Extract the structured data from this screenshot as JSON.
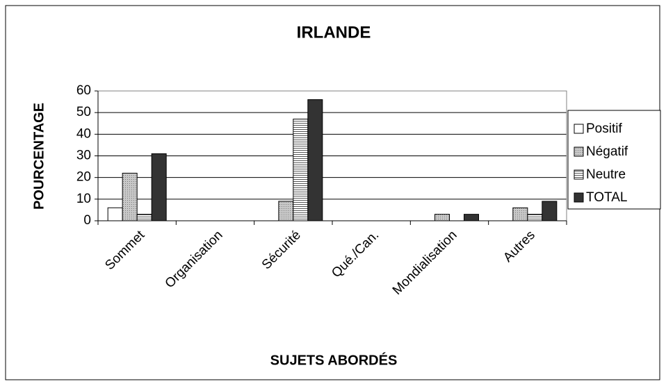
{
  "chart_data": {
    "type": "bar",
    "title": "IRLANDE",
    "x_label": "SUJETS ABORDÉS",
    "y_label": "POURCENTAGE",
    "categories": [
      "Sommet",
      "Organisation",
      "Sécurité",
      "Qué./Can.",
      "Mondialisation",
      "Autres"
    ],
    "series": [
      {
        "name": "Positif",
        "color": "#ffffff",
        "pattern": "none",
        "values": [
          6,
          0,
          0,
          0,
          0,
          0
        ]
      },
      {
        "name": "Négatif",
        "color": "#c8c8c8",
        "pattern": "dots",
        "values": [
          22,
          0,
          9,
          0,
          3,
          6
        ]
      },
      {
        "name": "Neutre",
        "color": "#ffffff",
        "pattern": "horizontal",
        "values": [
          3,
          0,
          47,
          0,
          0,
          3
        ]
      },
      {
        "name": "TOTAL",
        "color": "#333333",
        "pattern": "none",
        "values": [
          31,
          0,
          56,
          0,
          3,
          9
        ]
      }
    ],
    "ylim": [
      0,
      60
    ],
    "yticks": [
      0,
      10,
      20,
      30,
      40,
      50,
      60
    ],
    "grid": true,
    "legend": "right"
  }
}
